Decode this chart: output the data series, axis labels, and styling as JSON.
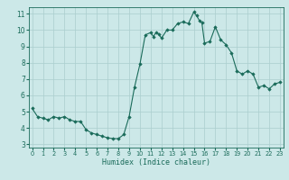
{
  "x": [
    0,
    0.5,
    1,
    1.5,
    2,
    2.5,
    3,
    3.5,
    4,
    4.5,
    5,
    5.5,
    6,
    6.5,
    7,
    7.5,
    8,
    8.5,
    9,
    9.5,
    10,
    10.5,
    11,
    11.25,
    11.5,
    11.75,
    12,
    12.5,
    13,
    13.5,
    14,
    14.5,
    15,
    15.25,
    15.5,
    15.75,
    16,
    16.5,
    17,
    17.5,
    18,
    18.5,
    19,
    19.5,
    20,
    20.5,
    21,
    21.5,
    22,
    22.5,
    23
  ],
  "y": [
    5.2,
    4.7,
    4.6,
    4.5,
    4.7,
    4.6,
    4.7,
    4.5,
    4.4,
    4.4,
    3.9,
    3.7,
    3.6,
    3.5,
    3.4,
    3.35,
    3.35,
    3.6,
    4.7,
    6.5,
    7.9,
    9.7,
    9.85,
    9.6,
    9.85,
    9.75,
    9.5,
    10.0,
    10.0,
    10.4,
    10.5,
    10.4,
    11.1,
    10.9,
    10.6,
    10.45,
    9.2,
    9.3,
    10.2,
    9.4,
    9.1,
    8.6,
    7.5,
    7.3,
    7.5,
    7.3,
    6.5,
    6.6,
    6.4,
    6.7,
    6.8
  ],
  "xlabel": "Humidex (Indice chaleur)",
  "xticks": [
    0,
    1,
    2,
    3,
    4,
    5,
    6,
    7,
    8,
    9,
    10,
    11,
    12,
    13,
    14,
    15,
    16,
    17,
    18,
    19,
    20,
    21,
    22,
    23
  ],
  "yticks": [
    3,
    4,
    5,
    6,
    7,
    8,
    9,
    10,
    11
  ],
  "xlim": [
    -0.3,
    23.3
  ],
  "ylim": [
    2.8,
    11.4
  ],
  "line_color": "#1a6b5a",
  "marker_color": "#1a6b5a",
  "bg_color": "#cce8e8",
  "grid_color": "#aacece"
}
